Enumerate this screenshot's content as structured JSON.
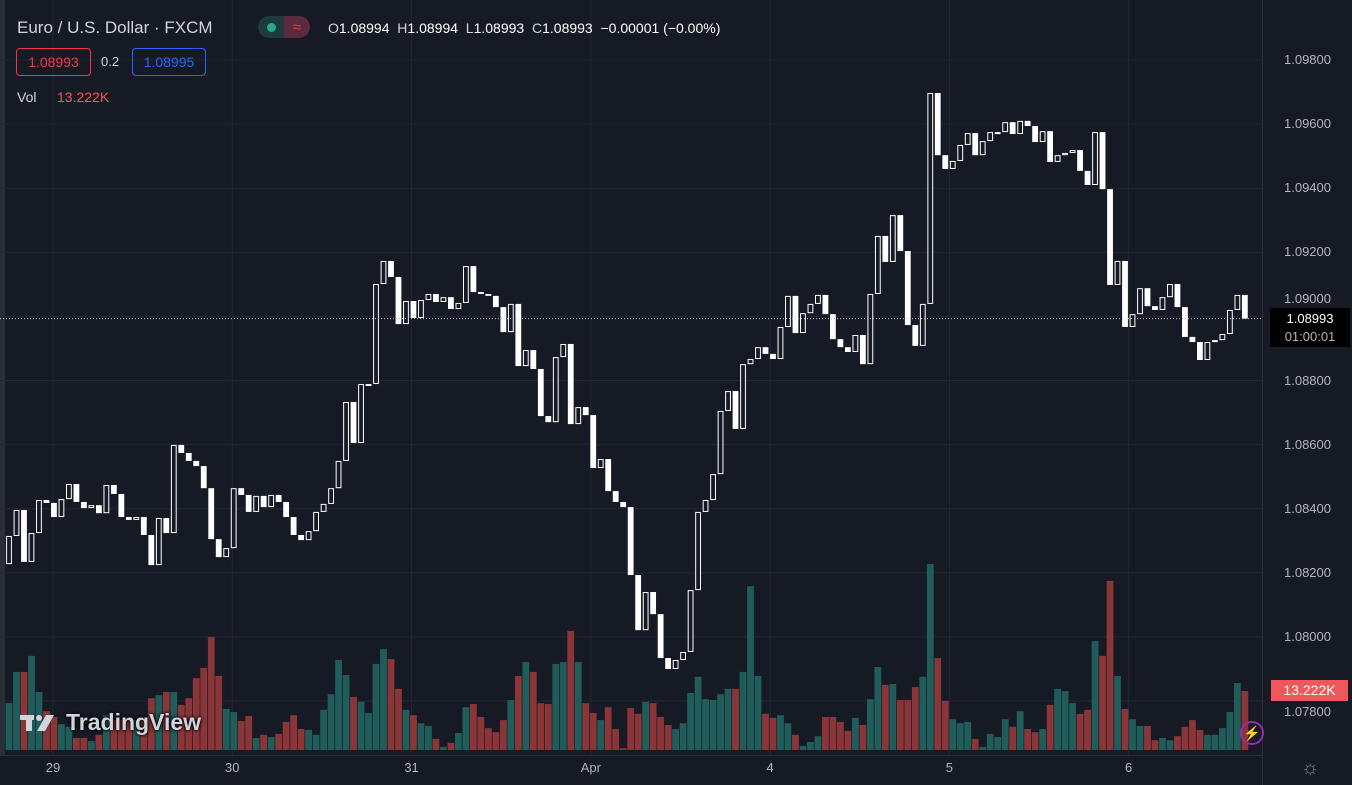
{
  "header": {
    "title": "Euro / U.S. Dollar · FXCM",
    "ohlc": {
      "o_key": "O",
      "o": "1.08994",
      "h_key": "H",
      "h": "1.08994",
      "l_key": "L",
      "l": "1.08993",
      "c_key": "C",
      "c": "1.08993",
      "change": "−0.00001 (−0.00%)"
    },
    "bid": "1.08993",
    "spread": "0.2",
    "ask": "1.08995",
    "vol_label": "Vol",
    "vol_value": "13.222K",
    "toggle_icon": "≈"
  },
  "price_tag": {
    "price": "1.08993",
    "countdown": "01:00:01"
  },
  "volume_tag": "13.222K",
  "logo": {
    "mark": "TV",
    "word": "TradingView"
  },
  "icons": {
    "bolt": "⚡",
    "gear": "☼"
  },
  "colors": {
    "background": "#161a25",
    "up_volume": "#1f5c5a",
    "down_volume": "#8a3537",
    "candle": "#ffffff",
    "bid": "#f23645",
    "ask": "#2962ff"
  },
  "chart_data": {
    "type": "candlestick",
    "title": "Euro / U.S. Dollar · FXCM",
    "interval": "1h",
    "style": "hollow candles (hollow = up, filled = down); open = previous close",
    "first_open": 1.08227,
    "close": [
      1.08315,
      1.08396,
      1.08234,
      1.08324,
      1.08427,
      1.08418,
      1.08374,
      1.0843,
      1.08477,
      1.08421,
      1.08402,
      1.08411,
      1.08386,
      1.08474,
      1.08446,
      1.08374,
      1.08365,
      1.08374,
      1.08318,
      1.08224,
      1.08371,
      1.08324,
      1.08599,
      1.08574,
      1.08549,
      1.08533,
      1.08464,
      1.08305,
      1.08249,
      1.08277,
      1.08464,
      1.08443,
      1.0839,
      1.0844,
      1.08405,
      1.08443,
      1.08421,
      1.08374,
      1.08318,
      1.08302,
      1.0833,
      1.0839,
      1.08415,
      1.08464,
      1.08549,
      1.08733,
      1.08605,
      1.08789,
      1.08789,
      1.09101,
      1.09173,
      1.09123,
      1.08976,
      1.09048,
      1.08995,
      1.09051,
      1.0907,
      1.09045,
      1.0906,
      1.09023,
      1.09042,
      1.09157,
      1.09076,
      1.0907,
      1.09064,
      1.09029,
      1.08951,
      1.09039,
      1.08845,
      1.08895,
      1.08836,
      1.08689,
      1.0867,
      1.08873,
      1.08914,
      1.08664,
      1.08717,
      1.08692,
      1.08527,
      1.08555,
      1.08455,
      1.08421,
      1.08405,
      1.08193,
      1.08021,
      1.0814,
      1.08071,
      1.07934,
      1.079,
      1.07928,
      1.07953,
      1.08146,
      1.0839,
      1.08427,
      1.08508,
      1.08705,
      1.08767,
      1.08649,
      1.08851,
      1.08867,
      1.08904,
      1.08883,
      1.08867,
      1.08967,
      1.09064,
      1.08948,
      1.0901,
      1.09039,
      1.09067,
      1.09007,
      1.08929,
      1.08904,
      1.08889,
      1.08942,
      1.08851,
      1.0907,
      1.09251,
      1.0917,
      1.09316,
      1.09204,
      1.08973,
      1.08908,
      1.09039,
      1.09697,
      1.09503,
      1.0946,
      1.09485,
      1.09535,
      1.09572,
      1.09503,
      1.09547,
      1.09575,
      1.09575,
      1.09606,
      1.09569,
      1.0961,
      1.09594,
      1.09544,
      1.09578,
      1.09482,
      1.09503,
      1.0951,
      1.09519,
      1.09454,
      1.0941,
      1.09575,
      1.09397,
      1.09098,
      1.09173,
      1.08967,
      1.09007,
      1.09088,
      1.09032,
      1.0902,
      1.0906,
      1.09101,
      1.09029,
      1.08936,
      1.0892,
      1.08864,
      1.0892,
      1.08926,
      1.08945,
      1.0902,
      1.09067,
      1.08993
    ],
    "volume_k": [
      10.5,
      17.5,
      17.5,
      21.1,
      13.0,
      8.7,
      7.4,
      5.8,
      5.2,
      2.7,
      2.7,
      2.0,
      3.4,
      7.8,
      6.7,
      6.7,
      6.7,
      6.7,
      6.7,
      11.6,
      12.3,
      13.0,
      13.0,
      10.1,
      11.6,
      16.1,
      18.4,
      25.3,
      16.6,
      9.2,
      8.5,
      6.5,
      7.6,
      2.7,
      3.4,
      2.9,
      3.6,
      6.3,
      7.8,
      4.7,
      4.5,
      3.4,
      9.0,
      12.5,
      20.2,
      16.8,
      11.9,
      10.8,
      8.3,
      19.3,
      22.6,
      20.4,
      13.7,
      9.0,
      7.8,
      6.0,
      5.4,
      2.5,
      0.7,
      1.6,
      3.8,
      9.6,
      10.3,
      7.4,
      4.9,
      4.0,
      6.7,
      11.2,
      16.6,
      19.7,
      17.5,
      10.5,
      10.3,
      19.3,
      19.7,
      26.7,
      19.7,
      10.5,
      8.3,
      6.7,
      9.6,
      4.7,
      0.4,
      9.4,
      8.1,
      10.8,
      10.5,
      7.4,
      5.6,
      4.7,
      6.0,
      12.8,
      16.4,
      11.4,
      11.2,
      12.5,
      13.7,
      13.7,
      17.5,
      36.7,
      16.6,
      8.1,
      7.2,
      7.8,
      6.0,
      3.4,
      0.9,
      1.8,
      3.1,
      7.4,
      7.4,
      6.3,
      4.3,
      7.2,
      5.6,
      11.4,
      18.6,
      14.6,
      14.8,
      11.2,
      11.2,
      14.1,
      16.4,
      41.7,
      20.6,
      11.0,
      6.9,
      6.0,
      6.3,
      2.5,
      0.7,
      3.6,
      2.9,
      6.9,
      5.2,
      8.7,
      4.7,
      4.0,
      4.7,
      10.1,
      13.7,
      13.2,
      10.5,
      8.1,
      9.0,
      24.4,
      21.1,
      37.9,
      16.6,
      9.2,
      6.9,
      5.4,
      5.4,
      2.2,
      2.7,
      2.2,
      3.1,
      5.2,
      6.7,
      4.5,
      3.4,
      3.4,
      4.9,
      8.5,
      15.0,
      13.222
    ],
    "ylim": [
      1.0768,
      1.0988
    ],
    "y_ticks": [
      "1.09800",
      "1.09600",
      "1.09400",
      "1.09200",
      "1.09000",
      "1.08800",
      "1.08600",
      "1.08400",
      "1.08200",
      "1.08000",
      "1.07800"
    ],
    "x_ticks": [
      {
        "label": "29",
        "index": 6
      },
      {
        "label": "30",
        "index": 30
      },
      {
        "label": "31",
        "index": 54
      },
      {
        "label": "Apr",
        "index": 78
      },
      {
        "label": "4",
        "index": 102
      },
      {
        "label": "5",
        "index": 126
      },
      {
        "label": "6",
        "index": 150
      }
    ],
    "last_price": 1.08993,
    "grid": true
  }
}
